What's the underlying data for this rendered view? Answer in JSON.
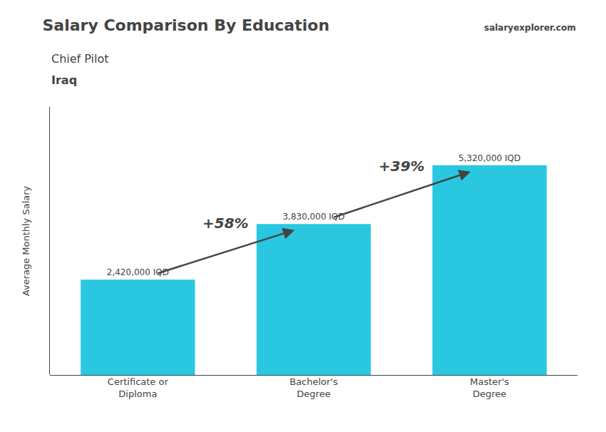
{
  "chart_data": {
    "type": "bar",
    "title": "Salary Comparison By Education",
    "subtitle": "Chief Pilot",
    "country": "Iraq",
    "source": "salaryexplorer.com",
    "categories": [
      "Certificate or\nDiploma",
      "Bachelor's\nDegree",
      "Master's\nDegree"
    ],
    "values": [
      2420000,
      3830000,
      5320000
    ],
    "value_labels": [
      "2,420,000 IQD",
      "3,830,000 IQD",
      "5,320,000 IQD"
    ],
    "data_labels": true,
    "annotations": [
      "+58%",
      "+39%"
    ],
    "color": "#29c8e0",
    "ylabel": "Average Monthly Salary",
    "ylim": [
      0,
      6800000
    ],
    "tick_labels": "x",
    "grid": false
  }
}
